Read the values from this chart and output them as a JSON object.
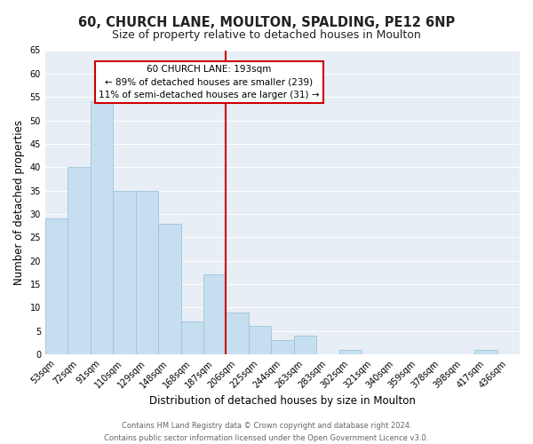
{
  "title": "60, CHURCH LANE, MOULTON, SPALDING, PE12 6NP",
  "subtitle": "Size of property relative to detached houses in Moulton",
  "xlabel": "Distribution of detached houses by size in Moulton",
  "ylabel": "Number of detached properties",
  "bar_labels": [
    "53sqm",
    "72sqm",
    "91sqm",
    "110sqm",
    "129sqm",
    "148sqm",
    "168sqm",
    "187sqm",
    "206sqm",
    "225sqm",
    "244sqm",
    "263sqm",
    "283sqm",
    "302sqm",
    "321sqm",
    "340sqm",
    "359sqm",
    "378sqm",
    "398sqm",
    "417sqm",
    "436sqm"
  ],
  "bar_values": [
    29,
    40,
    54,
    35,
    35,
    28,
    7,
    17,
    9,
    6,
    3,
    4,
    0,
    1,
    0,
    0,
    0,
    0,
    0,
    1,
    0
  ],
  "bar_color": "#c6dff0",
  "bar_edge_color": "#9ec4db",
  "vline_index": 7,
  "vline_color": "#cc0000",
  "ylim": [
    0,
    65
  ],
  "yticks": [
    0,
    5,
    10,
    15,
    20,
    25,
    30,
    35,
    40,
    45,
    50,
    55,
    60,
    65
  ],
  "annotation_title": "60 CHURCH LANE: 193sqm",
  "annotation_line1": "← 89% of detached houses are smaller (239)",
  "annotation_line2": "11% of semi-detached houses are larger (31) →",
  "annotation_box_color": "#ffffff",
  "annotation_box_edge": "#cc0000",
  "footer1": "Contains HM Land Registry data © Crown copyright and database right 2024.",
  "footer2": "Contains public sector information licensed under the Open Government Licence v3.0.",
  "plot_bg_color": "#e8eef5",
  "fig_bg_color": "#ffffff",
  "grid_color": "#ffffff",
  "title_fontsize": 10.5,
  "subtitle_fontsize": 9,
  "tick_fontsize": 7,
  "label_fontsize": 8.5,
  "footer_fontsize": 6
}
